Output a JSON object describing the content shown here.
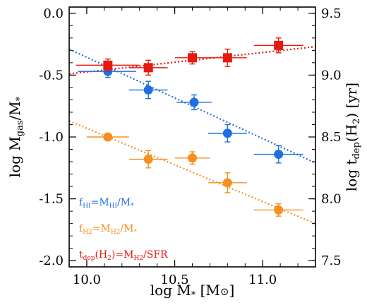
{
  "chart_data": {
    "type": "scatter",
    "xlabel": "log M",
    "xlabel_sub": "*",
    "xlabel_unit_open": " [M",
    "xlabel_unit_sym": "⊙",
    "xlabel_unit_close": "]",
    "ylabel_left": "log M",
    "ylabel_left_sub": "gas",
    "ylabel_left_tail": "/M",
    "ylabel_left_tailsub": "*",
    "ylabel_right": "log t",
    "ylabel_right_sub": "dep",
    "ylabel_right_tail": "(H",
    "ylabel_right_tailsub": "2",
    "ylabel_right_close": ") [yr]",
    "xlim": [
      9.9,
      11.3
    ],
    "ylim_left": [
      -2.05,
      0.05
    ],
    "ylim_right": [
      7.45,
      9.55
    ],
    "x_ticks": [
      10.0,
      10.5,
      11.0
    ],
    "x_tick_labels": [
      "10.0",
      "10.5",
      "11.0"
    ],
    "y_left_ticks": [
      0.0,
      -0.5,
      -1.0,
      -1.5,
      -2.0
    ],
    "y_left_tick_labels": [
      "0.0",
      "-0.5",
      "-1.0",
      "-1.5",
      "-2.0"
    ],
    "y_right_ticks": [
      9.5,
      9.0,
      8.5,
      8.0,
      7.5
    ],
    "y_right_tick_labels": [
      "9.5",
      "9.0",
      "8.5",
      "8.0",
      "7.5"
    ],
    "series": [
      {
        "key": "fHI",
        "color": "#1f6fe0",
        "marker": "circle",
        "axis": "left",
        "legend": {
          "f": "f",
          "fsub": "HI",
          "eq": "=M",
          "msub": "HI",
          "tail": "/M",
          "tailsub": "*"
        },
        "points": [
          {
            "x": 10.12,
            "y": -0.47,
            "xerr": [
              0.17,
              0.16
            ],
            "yerr": 0.05
          },
          {
            "x": 10.35,
            "y": -0.62,
            "xerr": [
              0.11,
              0.11
            ],
            "yerr": 0.07
          },
          {
            "x": 10.61,
            "y": -0.72,
            "xerr": [
              0.1,
              0.1
            ],
            "yerr": 0.06
          },
          {
            "x": 10.8,
            "y": -0.97,
            "xerr": [
              0.11,
              0.11
            ],
            "yerr": 0.07
          },
          {
            "x": 11.09,
            "y": -1.14,
            "xerr": [
              0.14,
              0.14
            ],
            "yerr": 0.07
          }
        ],
        "fit": {
          "x0": 9.9,
          "y0": -0.29,
          "x1": 11.3,
          "y1": -1.21
        }
      },
      {
        "key": "fH2",
        "color": "#f5901e",
        "marker": "circle",
        "axis": "left",
        "legend": {
          "f": "f",
          "fsub": "H2",
          "eq": "=M",
          "msub": "H2",
          "tail": "/M",
          "tailsub": "*"
        },
        "points": [
          {
            "x": 10.12,
            "y": -1.0,
            "xerr": [
              0.12,
              0.12
            ],
            "yerr": 0.0
          },
          {
            "x": 10.35,
            "y": -1.18,
            "xerr": [
              0.11,
              0.11
            ],
            "yerr": 0.07
          },
          {
            "x": 10.6,
            "y": -1.17,
            "xerr": [
              0.1,
              0.1
            ],
            "yerr": 0.05
          },
          {
            "x": 10.8,
            "y": -1.37,
            "xerr": [
              0.11,
              0.11
            ],
            "yerr": 0.08
          },
          {
            "x": 11.09,
            "y": -1.59,
            "xerr": [
              0.14,
              0.14
            ],
            "yerr": 0.05
          }
        ],
        "fit": {
          "x0": 9.9,
          "y0": -0.87,
          "x1": 11.3,
          "y1": -1.7
        }
      },
      {
        "key": "tdep",
        "color": "#e41a0f",
        "marker": "square",
        "axis": "right",
        "legend": {
          "f": "t",
          "fsub": "dep",
          "eq": "(H",
          "msub": "2",
          "tail": ")=M",
          "tailsub": "H2",
          "extra": "/SFR"
        },
        "points": [
          {
            "x": 10.12,
            "y": 9.08,
            "xerr": [
              0.18,
              0.18
            ],
            "yerr": 0.05
          },
          {
            "x": 10.35,
            "y": 9.06,
            "xerr": [
              0.11,
              0.11
            ],
            "yerr": 0.06
          },
          {
            "x": 10.6,
            "y": 9.14,
            "xerr": [
              0.1,
              0.1
            ],
            "yerr": 0.05
          },
          {
            "x": 10.8,
            "y": 9.14,
            "xerr": [
              0.11,
              0.11
            ],
            "yerr": 0.07
          },
          {
            "x": 11.09,
            "y": 9.24,
            "xerr": [
              0.14,
              0.14
            ],
            "yerr": 0.06
          }
        ],
        "fit": {
          "x0": 9.9,
          "y0": 9.01,
          "x1": 11.3,
          "y1": 9.23
        }
      }
    ]
  }
}
